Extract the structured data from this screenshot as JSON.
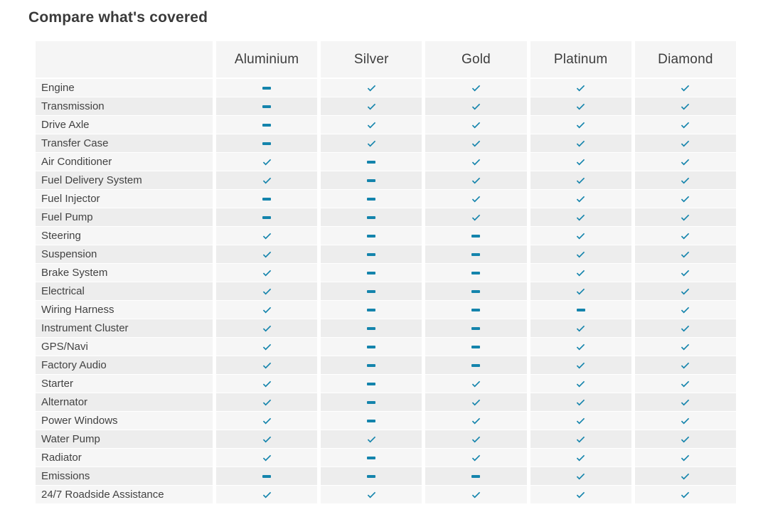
{
  "page": {
    "title": "Compare what's covered"
  },
  "table": {
    "plans": [
      "Aluminium",
      "Silver",
      "Gold",
      "Platinum",
      "Diamond"
    ],
    "rows": [
      {
        "label": "Engine",
        "coverage": [
          false,
          true,
          true,
          true,
          true
        ]
      },
      {
        "label": "Transmission",
        "coverage": [
          false,
          true,
          true,
          true,
          true
        ]
      },
      {
        "label": "Drive Axle",
        "coverage": [
          false,
          true,
          true,
          true,
          true
        ]
      },
      {
        "label": "Transfer Case",
        "coverage": [
          false,
          true,
          true,
          true,
          true
        ]
      },
      {
        "label": "Air Conditioner",
        "coverage": [
          true,
          false,
          true,
          true,
          true
        ]
      },
      {
        "label": "Fuel Delivery System",
        "coverage": [
          true,
          false,
          true,
          true,
          true
        ]
      },
      {
        "label": "Fuel Injector",
        "coverage": [
          false,
          false,
          true,
          true,
          true
        ]
      },
      {
        "label": "Fuel Pump",
        "coverage": [
          false,
          false,
          true,
          true,
          true
        ]
      },
      {
        "label": "Steering",
        "coverage": [
          true,
          false,
          false,
          true,
          true
        ]
      },
      {
        "label": "Suspension",
        "coverage": [
          true,
          false,
          false,
          true,
          true
        ]
      },
      {
        "label": "Brake System",
        "coverage": [
          true,
          false,
          false,
          true,
          true
        ]
      },
      {
        "label": "Electrical",
        "coverage": [
          true,
          false,
          false,
          true,
          true
        ]
      },
      {
        "label": "Wiring Harness",
        "coverage": [
          true,
          false,
          false,
          false,
          true
        ]
      },
      {
        "label": "Instrument Cluster",
        "coverage": [
          true,
          false,
          false,
          true,
          true
        ]
      },
      {
        "label": "GPS/Navi",
        "coverage": [
          true,
          false,
          false,
          true,
          true
        ]
      },
      {
        "label": "Factory Audio",
        "coverage": [
          true,
          false,
          false,
          true,
          true
        ]
      },
      {
        "label": "Starter",
        "coverage": [
          true,
          false,
          true,
          true,
          true
        ]
      },
      {
        "label": "Alternator",
        "coverage": [
          true,
          false,
          true,
          true,
          true
        ]
      },
      {
        "label": "Power Windows",
        "coverage": [
          true,
          false,
          true,
          true,
          true
        ]
      },
      {
        "label": "Water Pump",
        "coverage": [
          true,
          true,
          true,
          true,
          true
        ]
      },
      {
        "label": "Radiator",
        "coverage": [
          true,
          false,
          true,
          true,
          true
        ]
      },
      {
        "label": "Emissions",
        "coverage": [
          false,
          false,
          false,
          true,
          true
        ]
      },
      {
        "label": "24/7 Roadside Assistance",
        "coverage": [
          true,
          true,
          true,
          true,
          true
        ]
      }
    ],
    "icons": {
      "covered": "check-icon",
      "not_covered": "dash-icon"
    }
  },
  "colors": {
    "accent_teal": "#1484ac",
    "header_bg": "#f5f5f5",
    "row_light": "#f6f6f6",
    "row_dark": "#ededed",
    "title_text": "#3a3a3a"
  }
}
